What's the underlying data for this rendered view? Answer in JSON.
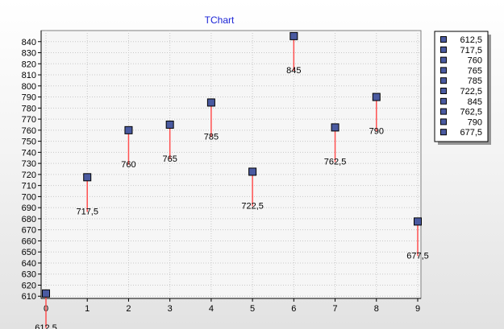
{
  "colors": {
    "title": "#1a23d6",
    "marker_fill": "#4a5aa0",
    "marker_stroke": "#000000",
    "stem": "#ff5050",
    "grid": "#c8c8c8",
    "plot_background": "#f6f6f6"
  },
  "chart_data": {
    "type": "scatter",
    "title": "TChart",
    "xlabel": "",
    "ylabel": "",
    "x": [
      0,
      1,
      2,
      3,
      4,
      5,
      6,
      7,
      8,
      9
    ],
    "values": [
      612.5,
      717.5,
      760,
      765,
      785,
      722.5,
      845,
      762.5,
      790,
      677.5
    ],
    "data_labels": [
      "612,5",
      "717,5",
      "760",
      "765",
      "785",
      "722,5",
      "845",
      "762,5",
      "790",
      "677,5"
    ],
    "x_ticks": [
      "0",
      "1",
      "2",
      "3",
      "4",
      "5",
      "6",
      "7",
      "8",
      "9"
    ],
    "y_ticks": [
      "610",
      "620",
      "630",
      "640",
      "650",
      "660",
      "670",
      "680",
      "690",
      "700",
      "710",
      "720",
      "730",
      "740",
      "750",
      "760",
      "770",
      "780",
      "790",
      "800",
      "810",
      "820",
      "830",
      "840"
    ],
    "xlim": [
      0,
      9
    ],
    "ylim": [
      608,
      850
    ],
    "grid": true,
    "marker": "square",
    "stem_color": "red",
    "legend_position": "right",
    "legend": [
      "612,5",
      "717,5",
      "760",
      "765",
      "785",
      "722,5",
      "845",
      "762,5",
      "790",
      "677,5"
    ]
  }
}
